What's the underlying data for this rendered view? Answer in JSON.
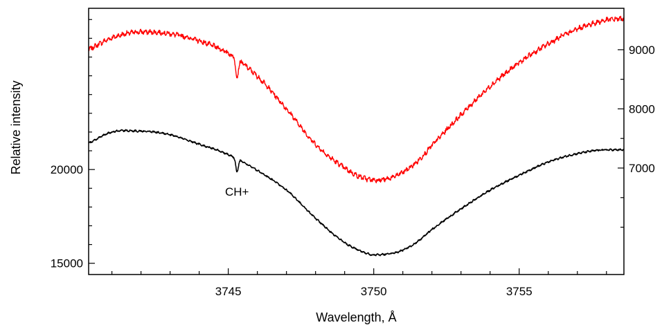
{
  "chart_data": {
    "type": "line",
    "xlabel": "Wavelength, Å",
    "ylabel": "Relative intensity",
    "xlim": [
      3740.2,
      3758.6
    ],
    "x_ticks": [
      3745,
      3750,
      3755
    ],
    "left_axis": {
      "ylim": [
        14400,
        28600
      ],
      "ticks": [
        15000,
        20000
      ]
    },
    "right_axis": {
      "ylim": [
        5200,
        9700
      ],
      "ticks": [
        7000,
        8000,
        9000
      ]
    },
    "grid": false,
    "annotations": [
      {
        "text": "CH+",
        "x": 3745.3
      }
    ],
    "series": [
      {
        "axis": "right",
        "color": "#ff0000",
        "x": [
          3740.2,
          3741.0,
          3742.0,
          3743.0,
          3744.0,
          3745.0,
          3746.0,
          3747.0,
          3748.0,
          3749.0,
          3749.5,
          3750.0,
          3750.5,
          3751.0,
          3751.5,
          3752.0,
          3753.0,
          3754.0,
          3755.0,
          3756.0,
          3757.0,
          3758.0,
          3758.6
        ],
        "y": [
          9000,
          9200,
          9300,
          9270,
          9150,
          8940,
          8550,
          8000,
          7400,
          7000,
          6860,
          6800,
          6820,
          6930,
          7110,
          7380,
          7900,
          8380,
          8780,
          9100,
          9350,
          9500,
          9530
        ]
      },
      {
        "axis": "left",
        "color": "#000000",
        "x": [
          3740.2,
          3741.0,
          3742.0,
          3743.0,
          3744.0,
          3745.0,
          3746.0,
          3747.0,
          3748.0,
          3749.0,
          3749.5,
          3750.0,
          3750.5,
          3751.0,
          3751.5,
          3752.0,
          3753.0,
          3754.0,
          3755.0,
          3756.0,
          3757.0,
          3758.0,
          3758.6
        ],
        "y": [
          21400,
          22000,
          22050,
          21850,
          21350,
          20800,
          19950,
          18900,
          17400,
          16100,
          15700,
          15450,
          15500,
          15700,
          16150,
          16800,
          17900,
          18900,
          19700,
          20400,
          20850,
          21050,
          21050
        ]
      }
    ],
    "absorption_features": [
      {
        "x": 3745.3,
        "depth_left": 700,
        "depth_right": 320,
        "width": 0.06
      }
    ]
  }
}
